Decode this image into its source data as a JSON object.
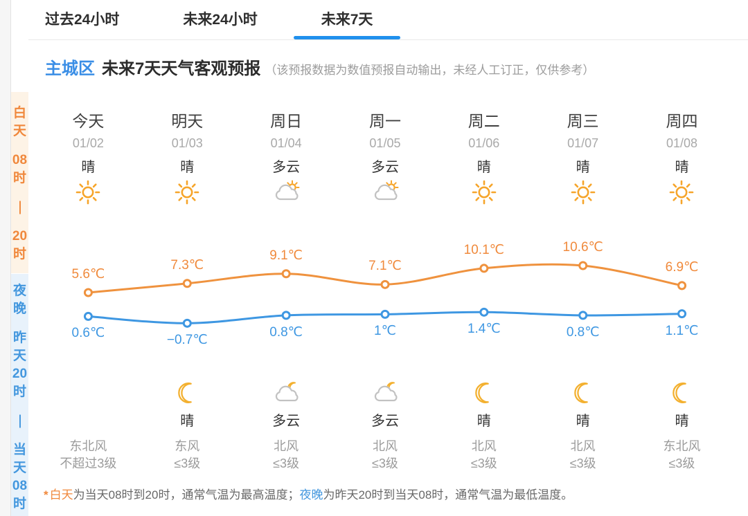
{
  "tabs": {
    "items": [
      {
        "label": "过去24小时",
        "active": false
      },
      {
        "label": "未来24小时",
        "active": false
      },
      {
        "label": "未来7天",
        "active": true
      }
    ]
  },
  "header": {
    "region": "主城区",
    "title": "未来7天天气客观预报",
    "note": "（该预报数据为数值预报自动输出，未经人工订正，仅供参考）"
  },
  "sidebar": {
    "day_period": {
      "segments": [
        [
          "白",
          "天"
        ],
        [
          "08",
          "时"
        ],
        [
          "—"
        ],
        [
          "20",
          "时"
        ]
      ]
    },
    "night_period": {
      "segments": [
        [
          "夜",
          "晚"
        ],
        [
          "昨",
          "天",
          "20",
          "时"
        ],
        [
          "—"
        ],
        [
          "当",
          "天",
          "08",
          "时"
        ]
      ]
    }
  },
  "columns": [
    {
      "day": "今天",
      "date": "01/02",
      "day_cond": "晴",
      "day_icon": "sun-icon",
      "night_icon": "",
      "night_cond": "",
      "wind_dir": "东北风",
      "wind_level": "不超过3级"
    },
    {
      "day": "明天",
      "date": "01/03",
      "day_cond": "晴",
      "day_icon": "sun-icon",
      "night_icon": "moon-icon",
      "night_cond": "晴",
      "wind_dir": "东风",
      "wind_level": "≤3级"
    },
    {
      "day": "周日",
      "date": "01/04",
      "day_cond": "多云",
      "day_icon": "cloud-sun-icon",
      "night_icon": "cloud-moon-icon",
      "night_cond": "多云",
      "wind_dir": "北风",
      "wind_level": "≤3级"
    },
    {
      "day": "周一",
      "date": "01/05",
      "day_cond": "多云",
      "day_icon": "cloud-sun-icon",
      "night_icon": "cloud-moon-icon",
      "night_cond": "多云",
      "wind_dir": "北风",
      "wind_level": "≤3级"
    },
    {
      "day": "周二",
      "date": "01/06",
      "day_cond": "晴",
      "day_icon": "sun-icon",
      "night_icon": "moon-icon",
      "night_cond": "晴",
      "wind_dir": "北风",
      "wind_level": "≤3级"
    },
    {
      "day": "周三",
      "date": "01/07",
      "day_cond": "晴",
      "day_icon": "sun-icon",
      "night_icon": "moon-icon",
      "night_cond": "晴",
      "wind_dir": "北风",
      "wind_level": "≤3级"
    },
    {
      "day": "周四",
      "date": "01/08",
      "day_cond": "晴",
      "day_icon": "sun-icon",
      "night_icon": "moon-icon",
      "night_cond": "晴",
      "wind_dir": "东北风",
      "wind_level": "≤3级"
    }
  ],
  "chart_data": {
    "type": "line",
    "categories": [
      "今天 01/02",
      "明天 01/03",
      "周日 01/04",
      "周一 01/05",
      "周二 01/06",
      "周三 01/07",
      "周四 01/08"
    ],
    "unit": "℃",
    "grid": false,
    "legend_position": "none",
    "series": [
      {
        "name": "白天最高气温",
        "color": "#ef923e",
        "values": [
          5.6,
          7.3,
          9.1,
          7.1,
          10.1,
          10.6,
          6.9
        ],
        "labels": [
          "5.6℃",
          "7.3℃",
          "9.1℃",
          "7.1℃",
          "10.1℃",
          "10.6℃",
          "6.9℃"
        ]
      },
      {
        "name": "夜晚最低气温",
        "color": "#3e97e2",
        "values": [
          0.6,
          -0.7,
          0.8,
          1,
          1.4,
          0.8,
          1.1
        ],
        "labels": [
          "0.6℃",
          "−0.7℃",
          "0.8℃",
          "1℃",
          "1.4℃",
          "0.8℃",
          "1.1℃"
        ]
      }
    ]
  },
  "footnote": {
    "star": "*",
    "day_term": "白天",
    "day_rest": "为当天08时到20时，通常气温为最高温度；",
    "night_term": "夜晚",
    "night_rest": "为昨天20时到当天08时，通常气温为最低温度。"
  },
  "colors": {
    "accent_blue": "#2090ed",
    "brand_blue": "#3a8ee6",
    "high_line": "#ef923e",
    "low_line": "#3e97e2",
    "day_strip_bg": "#fdf3e6",
    "night_strip_bg": "#e8f2fb",
    "sun": "#f6a52b",
    "moon": "#f3b02f",
    "cloud": "#c2c2c2"
  }
}
